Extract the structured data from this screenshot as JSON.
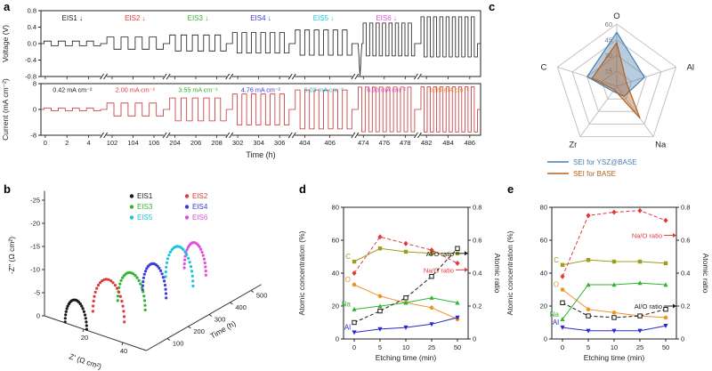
{
  "panels": {
    "a": {
      "label": "a"
    },
    "b": {
      "label": "b"
    },
    "c": {
      "label": "c"
    },
    "d": {
      "label": "d"
    },
    "e": {
      "label": "e"
    }
  },
  "chart_data": [
    {
      "id": "a",
      "type": "line",
      "ylabel_voltage": "Voltage (V)",
      "ylabel_current": "Current (mA cm⁻²)",
      "xlabel": "Time (h)",
      "voltage_ylim": [
        -0.8,
        0.8
      ],
      "voltage_ticks": [
        -0.8,
        -0.4,
        0.0,
        0.4,
        0.8
      ],
      "current_ylim": [
        -8,
        8
      ],
      "current_ticks": [
        -8,
        0,
        8
      ],
      "voltage_color": "#1a1a1a",
      "current_color": "#c83232",
      "groups": [
        {
          "ticks": [
            0,
            2,
            4
          ],
          "range": [
            -0.4,
            5.4
          ],
          "eis_label": "EIS1 ↓",
          "eis_color": "#1a1a1a",
          "current_label": "0.42 mA cm⁻²",
          "current_label_color": "#1a1a1a",
          "v_amp": 0.06,
          "i_amp": 0.42,
          "pulses": 4
        },
        {
          "ticks": [
            102,
            104,
            106
          ],
          "range": [
            101.2,
            107.2
          ],
          "eis_label": "EIS2 ↓",
          "eis_color": "#e03a3a",
          "current_label": "2.00 mA cm⁻²",
          "current_label_color": "#e03a3a",
          "v_amp": 0.16,
          "i_amp": 2.0,
          "pulses": 4
        },
        {
          "ticks": [
            204,
            206,
            208
          ],
          "range": [
            203.2,
            209.2
          ],
          "eis_label": "EIS3 ↓",
          "eis_color": "#2fb52f",
          "current_label": "3.55 mA cm⁻²",
          "current_label_color": "#2fb52f",
          "v_amp": 0.21,
          "i_amp": 3.55,
          "pulses": 5
        },
        {
          "ticks": [
            302,
            304,
            306
          ],
          "range": [
            301.2,
            307.2
          ],
          "eis_label": "EIS4 ↓",
          "eis_color": "#3a3ae0",
          "current_label": "4.76 mA cm⁻²",
          "current_label_color": "#3a3ae0",
          "v_amp": 0.27,
          "i_amp": 4.76,
          "pulses": 6
        },
        {
          "ticks": [
            404,
            406
          ],
          "range": [
            403.0,
            408.0
          ],
          "eis_label": "EIS5 ↓",
          "eis_color": "#18c5da",
          "current_label": "6.03 mA cm⁻²",
          "current_label_color": "#18c5da",
          "v_amp": 0.33,
          "i_amp": 6.03,
          "pulses": 6
        },
        {
          "ticks": [
            474,
            476,
            478
          ],
          "range": [
            473.2,
            479.2
          ],
          "eis_label": "EIS6 ↓",
          "eis_color": "#df4fdf",
          "current_label": "6.93 mA cm⁻²",
          "current_label_color": "#df4fdf",
          "v_amp": 0.5,
          "i_amp": 6.93,
          "pulses": 8,
          "v_neg": 0.6,
          "v_dip": 0.78
        },
        {
          "ticks": [
            482,
            484,
            486
          ],
          "range": [
            481.2,
            487.0
          ],
          "eis_label": "",
          "eis_color": "#1a1a1a",
          "current_label": "6.99 mA cm⁻²",
          "current_label_color": "#f09b1e",
          "v_amp": 0.65,
          "i_amp": 6.99,
          "pulses": 9,
          "v_neg": 0.5
        }
      ]
    },
    {
      "id": "b",
      "type": "scatter",
      "xlabel": "Z' (Ω cm²)",
      "ylabel": "-Z'' (Ω cm²)",
      "zlabel": "Time (h)",
      "z_ticks": [
        20,
        40
      ],
      "h_ticks": [
        0,
        -5,
        -10,
        -15,
        -20,
        -25
      ],
      "t_ticks": [
        100,
        200,
        300,
        400,
        500
      ],
      "series": [
        {
          "name": "EIS1",
          "color": "#1a1a1a",
          "time": 5,
          "z_start": 10,
          "z_end": 21,
          "peak": 5.5
        },
        {
          "name": "EIS2",
          "color": "#e03a3a",
          "time": 110,
          "z_start": 13,
          "z_end": 29,
          "peak": 8.0
        },
        {
          "name": "EIS3",
          "color": "#2fb52f",
          "time": 210,
          "z_start": 15,
          "z_end": 29,
          "peak": 7.0
        },
        {
          "name": "EIS4",
          "color": "#3a3ae0",
          "time": 310,
          "z_start": 17,
          "z_end": 29,
          "peak": 6.5
        },
        {
          "name": "EIS5",
          "color": "#18c5da",
          "time": 420,
          "z_start": 17,
          "z_end": 31,
          "peak": 7.5
        },
        {
          "name": "EIS6",
          "color": "#df4fdf",
          "time": 500,
          "z_start": 18,
          "z_end": 29,
          "peak": 6.2
        }
      ]
    },
    {
      "id": "c",
      "type": "radar",
      "axes": [
        "O",
        "Al",
        "Na",
        "Zr",
        "C"
      ],
      "rings": [
        15,
        30,
        45,
        60
      ],
      "max": 60,
      "series": [
        {
          "name": "SEI for YSZ@BASE",
          "color": "#4a7fae",
          "fill": "rgba(74,127,174,0.40)",
          "values": [
            52,
            28,
            12,
            6,
            30
          ]
        },
        {
          "name": "SEI for BASE",
          "color": "#b06020",
          "fill": "rgba(176,96,32,0.40)",
          "values": [
            42,
            10,
            38,
            4,
            25
          ]
        }
      ]
    },
    {
      "id": "d",
      "type": "line",
      "xlabel": "Etching time (min)",
      "ylabel_left": "Atomic concentration (%)",
      "ylabel_right": "Atomic ratio",
      "categories": [
        0,
        5,
        10,
        25,
        50
      ],
      "left_ticks": [
        0,
        20,
        40,
        60,
        80
      ],
      "right_ticks": [
        0,
        0.2,
        0.4,
        0.6,
        0.8
      ],
      "left_max": 80,
      "right_max": 0.8,
      "conc_series": [
        {
          "name": "C",
          "color": "#9d9d20",
          "marker": "sq",
          "values": [
            47,
            55,
            53,
            52,
            52
          ]
        },
        {
          "name": "O",
          "color": "#ef9326",
          "marker": "ci",
          "values": [
            33,
            26,
            22,
            19,
            12
          ]
        },
        {
          "name": "Na",
          "color": "#2fb52f",
          "marker": "tu",
          "values": [
            18,
            20,
            22,
            25,
            22
          ]
        },
        {
          "name": "Al",
          "color": "#2a2ac8",
          "marker": "td",
          "values": [
            4,
            6,
            7,
            9,
            13
          ]
        }
      ],
      "ratio_series": [
        {
          "name": "Na/O ratio",
          "color": "#e03a3a",
          "marker": "di",
          "values": [
            0.4,
            0.62,
            0.58,
            0.54,
            0.46
          ],
          "label_at": 0.42
        },
        {
          "name": "Al/O ratio",
          "color": "#1a1a1a",
          "marker": "sq_open",
          "values": [
            0.1,
            0.17,
            0.25,
            0.38,
            0.55
          ],
          "label_at": 0.52
        }
      ]
    },
    {
      "id": "e",
      "type": "line",
      "xlabel": "Etching time (min)",
      "ylabel_left": "Atomic concentration (%)",
      "ylabel_right": "Atomic ratio",
      "categories": [
        0,
        5,
        10,
        25,
        50
      ],
      "left_ticks": [
        0,
        20,
        40,
        60,
        80
      ],
      "right_ticks": [
        0,
        0.2,
        0.4,
        0.6,
        0.8
      ],
      "left_max": 80,
      "right_max": 0.8,
      "conc_series": [
        {
          "name": "C",
          "color": "#9d9d20",
          "marker": "sq",
          "values": [
            45,
            48,
            47,
            47,
            46
          ]
        },
        {
          "name": "O",
          "color": "#ef9326",
          "marker": "ci",
          "values": [
            30,
            18,
            16,
            14,
            13
          ]
        },
        {
          "name": "Na",
          "color": "#2fb52f",
          "marker": "tu",
          "values": [
            12,
            33,
            33,
            34,
            33
          ]
        },
        {
          "name": "Al",
          "color": "#2a2ac8",
          "marker": "td",
          "values": [
            7,
            5,
            5,
            5,
            8
          ]
        }
      ],
      "ratio_series": [
        {
          "name": "Na/O ratio",
          "color": "#e03a3a",
          "marker": "di",
          "values": [
            0.38,
            0.75,
            0.77,
            0.78,
            0.72
          ],
          "label_at": 0.63
        },
        {
          "name": "Al/O ratio",
          "color": "#1a1a1a",
          "marker": "sq_open",
          "values": [
            0.22,
            0.14,
            0.13,
            0.14,
            0.18
          ],
          "label_at": 0.2
        }
      ]
    }
  ]
}
